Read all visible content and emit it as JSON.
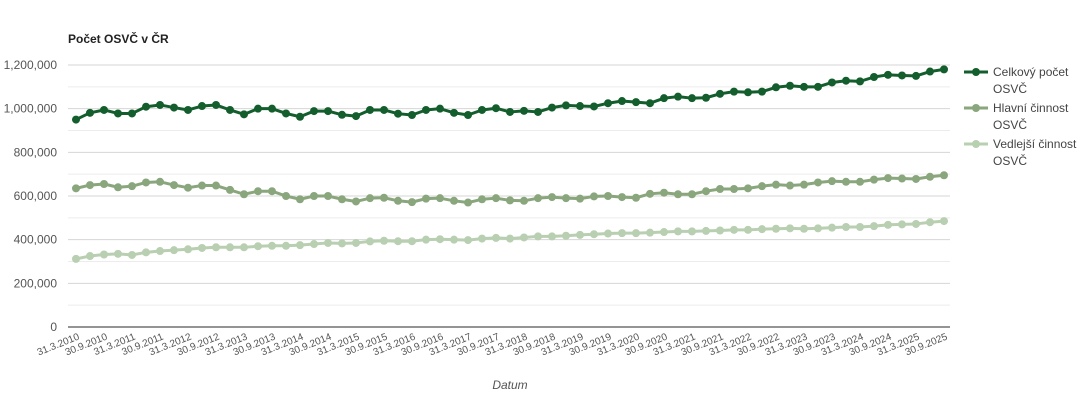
{
  "chart_data": {
    "type": "line",
    "title": "Počet OSVČ v ČR",
    "xlabel": "Datum",
    "ylabel": "",
    "ylim": [
      0,
      1200000
    ],
    "yticks": [
      0,
      200000,
      400000,
      600000,
      800000,
      1000000,
      1200000
    ],
    "ytick_labels": [
      "0",
      "200,000",
      "400,000",
      "600,000",
      "800,000",
      "1,000,000",
      "1,200,000"
    ],
    "grid": true,
    "legend_position": "right",
    "x": [
      "31.3.2010",
      "30.6.2010",
      "30.9.2010",
      "31.12.2010",
      "31.3.2011",
      "30.6.2011",
      "30.9.2011",
      "31.12.2011",
      "31.3.2012",
      "30.6.2012",
      "30.9.2012",
      "31.12.2012",
      "31.3.2013",
      "30.6.2013",
      "30.9.2013",
      "31.12.2013",
      "31.3.2014",
      "30.6.2014",
      "30.9.2014",
      "31.12.2014",
      "31.3.2015",
      "30.6.2015",
      "30.9.2015",
      "31.12.2015",
      "31.3.2016",
      "30.6.2016",
      "30.9.2016",
      "31.12.2016",
      "31.3.2017",
      "30.6.2017",
      "30.9.2017",
      "31.12.2017",
      "31.3.2018",
      "30.6.2018",
      "30.9.2018",
      "31.12.2018",
      "31.3.2019",
      "30.6.2019",
      "30.9.2019",
      "31.12.2019",
      "31.3.2020",
      "30.6.2020",
      "30.9.2020",
      "31.12.2020",
      "31.3.2021",
      "30.6.2021",
      "30.9.2021",
      "31.12.2021",
      "31.3.2022",
      "30.6.2022",
      "30.9.2022",
      "31.12.2022",
      "31.3.2023",
      "30.6.2023",
      "30.9.2023",
      "31.12.2023",
      "31.3.2024",
      "30.6.2024",
      "30.9.2024",
      "31.12.2024",
      "31.3.2025",
      "30.6.2025",
      "30.9.2025"
    ],
    "x_tick_labels": [
      "31.3.2010",
      "30.9.2010",
      "31.3.2011",
      "30.9.2011",
      "31.3.2012",
      "30.9.2012",
      "31.3.2013",
      "30.9.2013",
      "31.3.2014",
      "30.9.2014",
      "31.3.2015",
      "30.9.2015",
      "31.3.2016",
      "30.9.2016",
      "31.3.2017",
      "30.9.2017",
      "31.3.2018",
      "30.9.2018",
      "31.3.2019",
      "30.9.2019",
      "31.3.2020",
      "30.9.2020",
      "31.3.2021",
      "30.9.2021",
      "31.3.2022",
      "30.9.2022",
      "31.3.2023",
      "30.9.2023",
      "31.3.2024",
      "30.9.2024",
      "31.3.2025",
      "30.9.2025"
    ],
    "series": [
      {
        "name": "Celkový počet OSVČ",
        "legend_lines": [
          "Celkový počet",
          "OSVČ"
        ],
        "color": "#135e2c",
        "values": [
          950000,
          981000,
          994000,
          978000,
          978000,
          1009000,
          1017000,
          1005000,
          994000,
          1012000,
          1017000,
          994000,
          974000,
          1000000,
          1000000,
          978000,
          963000,
          989000,
          989000,
          972000,
          966000,
          994000,
          994000,
          977000,
          971000,
          994000,
          1000000,
          981000,
          971000,
          994000,
          1002000,
          985000,
          990000,
          985000,
          1005000,
          1015000,
          1012000,
          1010000,
          1025000,
          1035000,
          1030000,
          1025000,
          1048000,
          1055000,
          1048000,
          1050000,
          1068000,
          1078000,
          1075000,
          1078000,
          1098000,
          1105000,
          1100000,
          1100000,
          1120000,
          1128000,
          1125000,
          1145000,
          1155000,
          1152000,
          1150000,
          1170000,
          1180000
        ]
      },
      {
        "name": "Hlavní činnost OSVČ",
        "legend_lines": [
          "Hlavní činnost",
          "OSVČ"
        ],
        "color": "#8aa67d",
        "values": [
          635000,
          650000,
          655000,
          640000,
          645000,
          662000,
          665000,
          650000,
          638000,
          648000,
          648000,
          628000,
          608000,
          622000,
          622000,
          600000,
          585000,
          600000,
          600000,
          585000,
          575000,
          590000,
          592000,
          578000,
          572000,
          588000,
          590000,
          578000,
          570000,
          585000,
          590000,
          580000,
          578000,
          590000,
          595000,
          590000,
          588000,
          598000,
          600000,
          595000,
          592000,
          610000,
          615000,
          608000,
          608000,
          622000,
          632000,
          632000,
          635000,
          645000,
          652000,
          648000,
          652000,
          662000,
          668000,
          665000,
          665000,
          675000,
          682000,
          680000,
          678000,
          688000,
          695000
        ]
      },
      {
        "name": "Vedlejší činnost OSVČ",
        "legend_lines": [
          "Vedlejší činnost",
          "OSVČ"
        ],
        "color": "#b9cfb1",
        "values": [
          312000,
          325000,
          332000,
          335000,
          330000,
          342000,
          348000,
          352000,
          356000,
          362000,
          365000,
          365000,
          365000,
          370000,
          372000,
          372000,
          375000,
          380000,
          385000,
          383000,
          385000,
          392000,
          395000,
          393000,
          393000,
          400000,
          402000,
          400000,
          398000,
          405000,
          408000,
          405000,
          410000,
          415000,
          415000,
          418000,
          422000,
          425000,
          428000,
          430000,
          430000,
          432000,
          435000,
          438000,
          438000,
          440000,
          442000,
          445000,
          445000,
          448000,
          450000,
          452000,
          450000,
          452000,
          455000,
          458000,
          458000,
          462000,
          468000,
          470000,
          472000,
          480000,
          485000
        ]
      }
    ]
  }
}
